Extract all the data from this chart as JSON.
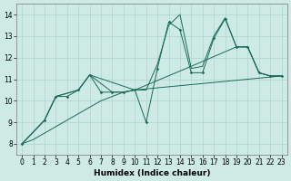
{
  "xlabel": "Humidex (Indice chaleur)",
  "background_color": "#cdeae4",
  "grid_color": "#b0d4ce",
  "line_color": "#1a6b5a",
  "xlim": [
    -0.5,
    23.5
  ],
  "ylim": [
    7.5,
    14.5
  ],
  "xticks": [
    0,
    1,
    2,
    3,
    4,
    5,
    6,
    7,
    8,
    9,
    10,
    11,
    12,
    13,
    14,
    15,
    16,
    17,
    18,
    19,
    20,
    21,
    22,
    23
  ],
  "yticks": [
    8,
    9,
    10,
    11,
    12,
    13,
    14
  ],
  "series1_x": [
    0,
    1,
    2,
    3,
    4,
    5,
    6,
    7,
    8,
    9,
    10,
    11,
    12,
    13,
    14,
    15,
    16,
    17,
    18,
    19,
    20,
    21,
    22,
    23
  ],
  "series1_y": [
    8.0,
    8.2,
    8.5,
    8.8,
    9.1,
    9.4,
    9.7,
    10.0,
    10.2,
    10.4,
    10.5,
    10.55,
    10.6,
    10.65,
    10.7,
    10.75,
    10.8,
    10.85,
    10.9,
    10.95,
    11.0,
    11.05,
    11.1,
    11.15
  ],
  "series2_x": [
    0,
    2,
    3,
    4,
    5,
    6,
    7,
    8,
    9,
    10,
    11,
    12,
    13,
    14,
    15,
    16,
    17,
    18,
    19,
    20,
    21,
    22,
    23
  ],
  "series2_y": [
    8.0,
    9.1,
    10.2,
    10.2,
    10.5,
    11.2,
    10.4,
    10.4,
    10.4,
    10.5,
    9.0,
    11.5,
    13.65,
    13.3,
    11.3,
    11.3,
    12.9,
    13.8,
    12.5,
    12.5,
    11.3,
    11.15,
    11.15
  ],
  "series3_x": [
    0,
    2,
    3,
    5,
    6,
    8,
    9,
    10,
    11,
    12,
    13,
    14,
    15,
    16,
    17,
    18,
    19,
    20,
    21,
    22,
    23
  ],
  "series3_y": [
    8.0,
    9.1,
    10.2,
    10.5,
    11.2,
    10.4,
    10.4,
    10.5,
    10.5,
    11.7,
    13.5,
    14.0,
    11.5,
    11.6,
    13.0,
    13.85,
    12.5,
    12.5,
    11.3,
    11.15,
    11.15
  ],
  "series4_x": [
    0,
    2,
    3,
    5,
    6,
    10,
    15,
    19,
    20,
    21,
    22,
    23
  ],
  "series4_y": [
    8.0,
    9.1,
    10.2,
    10.5,
    11.2,
    10.5,
    11.6,
    12.5,
    12.5,
    11.3,
    11.15,
    11.15
  ]
}
